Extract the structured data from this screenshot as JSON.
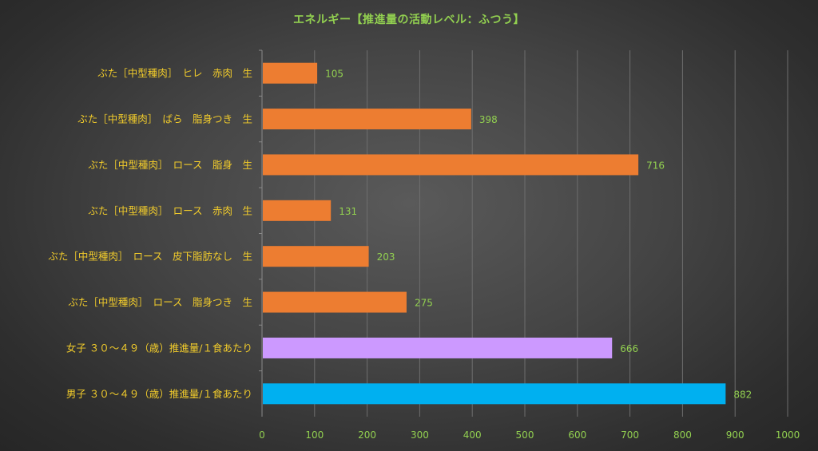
{
  "chart_data": {
    "type": "bar",
    "orientation": "horizontal",
    "title": "エネルギー【推進量の活動レベル：ふつう】",
    "categories": [
      "ぶた［中型種肉］　ヒレ　赤肉　生",
      "ぶた［中型種肉］　ばら　脂身つき　生",
      "ぶた［中型種肉］　ロース　脂身　生",
      "ぶた［中型種肉］　ロース　赤肉　生",
      "ぶた［中型種肉］　ロース　皮下脂肪なし　生",
      "ぶた［中型種肉］　ロース　脂身つき　生",
      "女子 ３０～４９（歳）推進量/１食あたり",
      "男子 ３０～４９（歳）推進量/１食あたり"
    ],
    "values": [
      105,
      398,
      716,
      131,
      203,
      275,
      666,
      882
    ],
    "bar_colors": [
      "#ed7d31",
      "#ed7d31",
      "#ed7d31",
      "#ed7d31",
      "#ed7d31",
      "#ed7d31",
      "#cc99ff",
      "#00b0f0"
    ],
    "xlim": [
      0,
      1000
    ],
    "xticks": [
      0,
      100,
      200,
      300,
      400,
      500,
      600,
      700,
      800,
      900,
      1000
    ],
    "grid": "vertical",
    "legend": "none",
    "colors": {
      "title": "#92d050",
      "category_text": "#f2cc2b",
      "tick_text": "#92d050",
      "data_label_text": "#92d050",
      "gridline": "#6e6e6e"
    }
  }
}
